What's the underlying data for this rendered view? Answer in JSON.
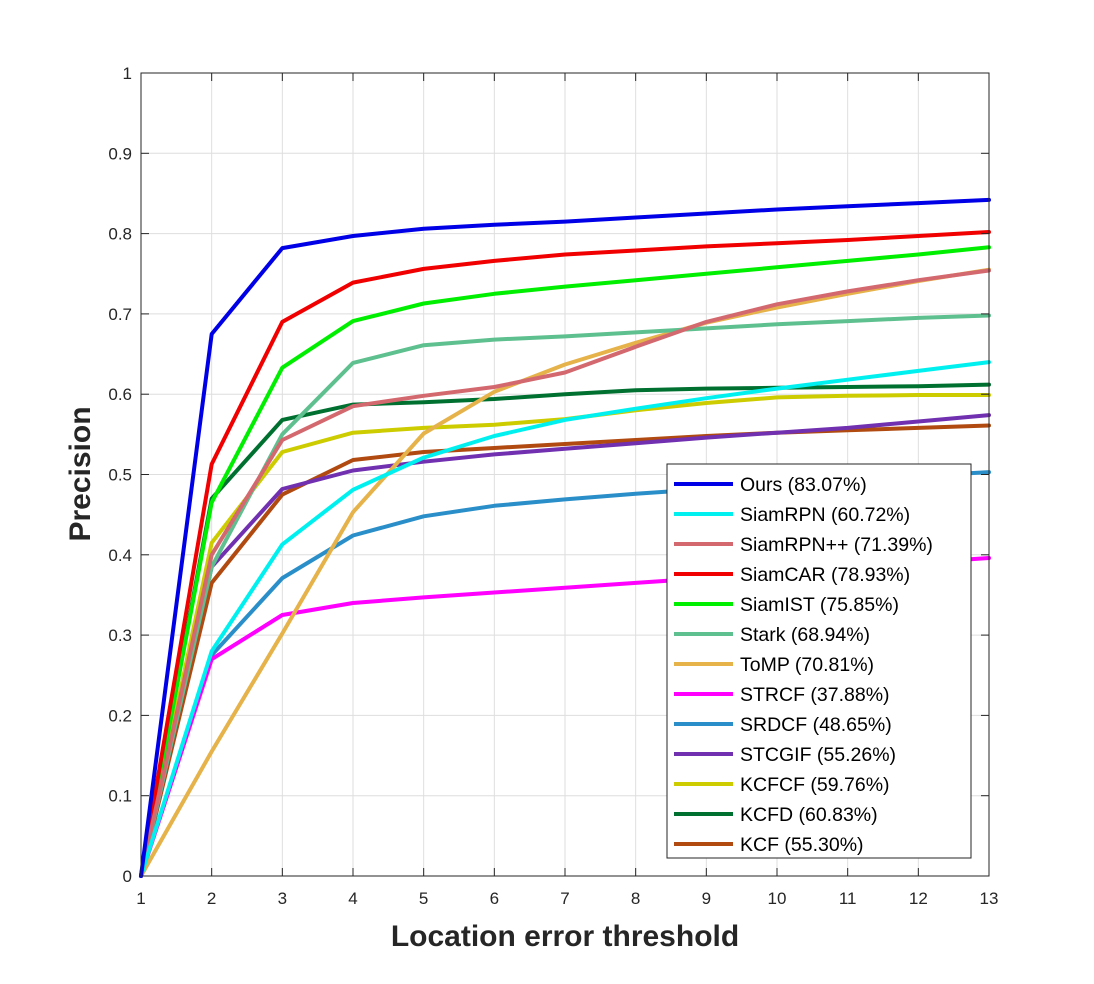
{
  "chart_data": {
    "type": "line",
    "xlabel": "Location error threshold",
    "ylabel": "Precision",
    "xlim": [
      1,
      13
    ],
    "ylim": [
      0,
      1
    ],
    "xticks": [
      "1",
      "2",
      "3",
      "4",
      "5",
      "6",
      "7",
      "8",
      "9",
      "10",
      "11",
      "12",
      "13"
    ],
    "yticks": [
      "0",
      "0.1",
      "0.2",
      "0.3",
      "0.4",
      "0.5",
      "0.6",
      "0.7",
      "0.8",
      "0.9",
      "1"
    ],
    "grid": true,
    "legend_position": "bottom-right",
    "x": [
      1,
      2,
      3,
      4,
      5,
      6,
      7,
      8,
      9,
      10,
      11,
      12,
      13
    ],
    "series": [
      {
        "name": "Ours (83.07%)",
        "color": "#0000e6",
        "values": [
          0,
          0.675,
          0.782,
          0.797,
          0.806,
          0.811,
          0.815,
          0.82,
          0.825,
          0.83,
          0.834,
          0.838,
          0.842
        ]
      },
      {
        "name": "SiamRPN (60.72%)",
        "color": "#00f0f0",
        "values": [
          0,
          0.28,
          0.413,
          0.481,
          0.521,
          0.548,
          0.568,
          0.582,
          0.595,
          0.607,
          0.618,
          0.629,
          0.64
        ]
      },
      {
        "name": "SiamRPN++ (71.39%)",
        "color": "#d4686f",
        "values": [
          0,
          0.4,
          0.543,
          0.585,
          0.598,
          0.609,
          0.627,
          0.659,
          0.69,
          0.712,
          0.728,
          0.742,
          0.754
        ]
      },
      {
        "name": "SiamCAR (78.93%)",
        "color": "#f00000",
        "values": [
          0,
          0.513,
          0.69,
          0.739,
          0.756,
          0.766,
          0.774,
          0.779,
          0.784,
          0.788,
          0.792,
          0.797,
          0.802
        ]
      },
      {
        "name": "SiamIST (75.85%)",
        "color": "#00ee00",
        "values": [
          0,
          0.465,
          0.633,
          0.691,
          0.713,
          0.725,
          0.734,
          0.742,
          0.75,
          0.758,
          0.766,
          0.774,
          0.783
        ]
      },
      {
        "name": "Stark (68.94%)",
        "color": "#5fc08f",
        "values": [
          0,
          0.385,
          0.55,
          0.639,
          0.661,
          0.668,
          0.672,
          0.677,
          0.682,
          0.687,
          0.691,
          0.695,
          0.698
        ]
      },
      {
        "name": "ToMP (70.81%)",
        "color": "#e6b24a",
        "values": [
          0,
          0.155,
          0.302,
          0.453,
          0.551,
          0.603,
          0.637,
          0.664,
          0.689,
          0.708,
          0.725,
          0.741,
          0.755
        ]
      },
      {
        "name": "STRCF (37.88%)",
        "color": "#ff00ff",
        "values": [
          0,
          0.27,
          0.325,
          0.34,
          0.347,
          0.353,
          0.359,
          0.365,
          0.371,
          0.378,
          0.384,
          0.39,
          0.396
        ]
      },
      {
        "name": "SRDCF (48.65%)",
        "color": "#2a8fc9",
        "values": [
          0,
          0.275,
          0.371,
          0.424,
          0.448,
          0.461,
          0.469,
          0.476,
          0.482,
          0.488,
          0.493,
          0.498,
          0.503
        ]
      },
      {
        "name": "STCGIF (55.26%)",
        "color": "#7030b0",
        "values": [
          0,
          0.385,
          0.482,
          0.505,
          0.516,
          0.525,
          0.532,
          0.539,
          0.546,
          0.552,
          0.558,
          0.566,
          0.574
        ]
      },
      {
        "name": "KCFCF (59.76%)",
        "color": "#cccc00",
        "values": [
          0,
          0.415,
          0.528,
          0.552,
          0.558,
          0.562,
          0.569,
          0.58,
          0.589,
          0.596,
          0.598,
          0.599,
          0.599
        ]
      },
      {
        "name": "KCFD (60.83%)",
        "color": "#007030",
        "values": [
          0,
          0.47,
          0.568,
          0.587,
          0.59,
          0.594,
          0.6,
          0.605,
          0.607,
          0.608,
          0.609,
          0.61,
          0.612
        ]
      },
      {
        "name": "KCF (55.30%)",
        "color": "#b04a10",
        "values": [
          0,
          0.365,
          0.475,
          0.518,
          0.528,
          0.533,
          0.538,
          0.543,
          0.548,
          0.552,
          0.555,
          0.558,
          0.561
        ]
      }
    ]
  }
}
